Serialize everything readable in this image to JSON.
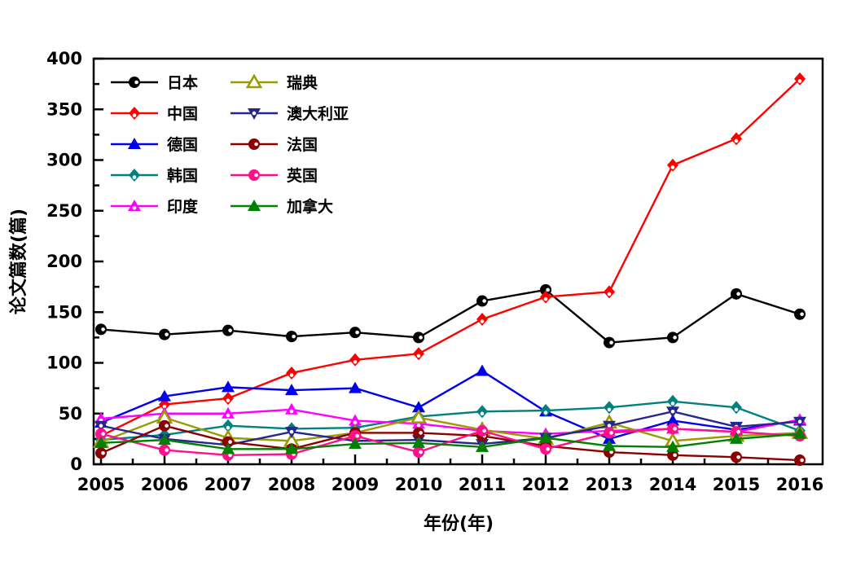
{
  "figure": {
    "background": "#ffffff",
    "frame_color": "#000000"
  },
  "chart_data": {
    "type": "line",
    "title": "",
    "xlabel": "年份(年)",
    "ylabel": "论文篇数(篇)",
    "x": [
      2005,
      2006,
      2007,
      2008,
      2009,
      2010,
      2011,
      2012,
      2013,
      2014,
      2015,
      2016
    ],
    "x_ticks": [
      "2005",
      "2006",
      "2007",
      "2008",
      "2009",
      "2010",
      "2011",
      "2012",
      "2013",
      "2014",
      "2015",
      "2016"
    ],
    "y_ticks": [
      0,
      50,
      100,
      150,
      200,
      250,
      300,
      350,
      400
    ],
    "ylim": [
      0,
      400
    ],
    "grid": false,
    "legend_position": "inside top-left, two columns",
    "legend_columns": [
      [
        "日本",
        "中国",
        "德国",
        "韩国",
        "印度"
      ],
      [
        "瑞典",
        "澳大利亚",
        "法国",
        "英国",
        "加拿大"
      ]
    ],
    "series": [
      {
        "key": "japan",
        "name": "日本",
        "color": "#000000",
        "marker": "circle",
        "fill": "half",
        "values": [
          133,
          128,
          132,
          126,
          130,
          125,
          161,
          172,
          120,
          125,
          168,
          148
        ]
      },
      {
        "key": "china",
        "name": "中国",
        "color": "#ff0000",
        "marker": "diamond",
        "fill": "half",
        "values": [
          28,
          59,
          65,
          90,
          103,
          109,
          143,
          165,
          170,
          295,
          321,
          380
        ]
      },
      {
        "key": "germany",
        "name": "德国",
        "color": "#0000ee",
        "marker": "triangle-up",
        "fill": "full",
        "values": [
          41,
          67,
          76,
          73,
          75,
          56,
          92,
          52,
          25,
          43,
          34,
          43
        ]
      },
      {
        "key": "korea",
        "name": "韩国",
        "color": "#008080",
        "marker": "diamond",
        "fill": "half",
        "values": [
          24,
          29,
          38,
          35,
          36,
          47,
          52,
          53,
          56,
          62,
          56,
          33
        ]
      },
      {
        "key": "india",
        "name": "印度",
        "color": "#ff00ff",
        "marker": "triangle-up",
        "fill": "half",
        "values": [
          45,
          50,
          50,
          54,
          43,
          40,
          33,
          30,
          33,
          35,
          32,
          44
        ]
      },
      {
        "key": "sweden",
        "name": "瑞典",
        "color": "#9b9b00",
        "marker": "triangle-up",
        "fill": "open",
        "values": [
          22,
          46,
          26,
          23,
          31,
          46,
          34,
          25,
          41,
          23,
          28,
          31
        ]
      },
      {
        "key": "australia",
        "name": "澳大利亚",
        "color": "#26268c",
        "marker": "triangle-down",
        "fill": "half",
        "values": [
          38,
          25,
          19,
          32,
          23,
          24,
          20,
          26,
          38,
          52,
          37,
          42
        ]
      },
      {
        "key": "france",
        "name": "法国",
        "color": "#8b0000",
        "marker": "circle",
        "fill": "half",
        "values": [
          11,
          38,
          22,
          15,
          31,
          31,
          28,
          18,
          12,
          9,
          7,
          4
        ]
      },
      {
        "key": "uk",
        "name": "英国",
        "color": "#ff0f8a",
        "marker": "circle",
        "fill": "half",
        "values": [
          30,
          14,
          9,
          10,
          28,
          12,
          33,
          15,
          31,
          35,
          32,
          28
        ]
      },
      {
        "key": "canada",
        "name": "加拿大",
        "color": "#008000",
        "marker": "triangle-up",
        "fill": "full",
        "values": [
          21,
          24,
          15,
          15,
          20,
          21,
          17,
          26,
          18,
          17,
          25,
          30
        ]
      }
    ]
  }
}
